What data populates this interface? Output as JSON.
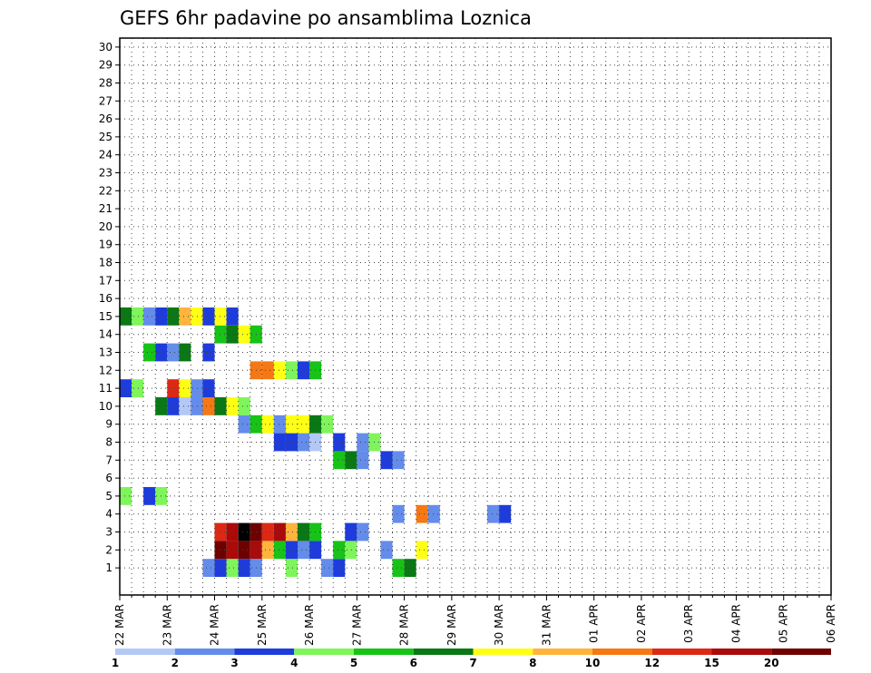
{
  "chart_data": {
    "type": "heatmap",
    "title": "GEFS 6hr padavine po ansamblima Loznica",
    "y": [
      "1",
      "2",
      "3",
      "4",
      "5",
      "6",
      "7",
      "8",
      "9",
      "10",
      "11",
      "12",
      "13",
      "14",
      "15",
      "16",
      "17",
      "18",
      "19",
      "20",
      "21",
      "22",
      "23",
      "24",
      "25",
      "26",
      "27",
      "28",
      "29",
      "30"
    ],
    "xticks": [
      "22 MAR",
      "23 MAR",
      "24 MAR",
      "25 MAR",
      "26 MAR",
      "27 MAR",
      "28 MAR",
      "29 MAR",
      "30 MAR",
      "31 MAR",
      "01 APR",
      "02 APR",
      "03 APR",
      "04 APR",
      "05 APR",
      "06 APR"
    ],
    "steps_per_day": 4,
    "colorbar": {
      "labels": [
        "1",
        "2",
        "3",
        "4",
        "5",
        "6",
        "7",
        "8",
        "10",
        "12",
        "15",
        "20"
      ],
      "colors": [
        "#b4c8f5",
        "#648ceb",
        "#1e3cdc",
        "#7ef55a",
        "#16c316",
        "#0a7814",
        "#ffff14",
        "#ffb43c",
        "#f57814",
        "#dc2814",
        "#aa0a0a",
        "#6e0000"
      ]
    },
    "grid": true,
    "cells": [
      [
        1,
        7,
        [
          [
            0,
            1
          ],
          [
            1,
            2
          ],
          [
            2,
            3
          ],
          [
            3,
            2
          ],
          [
            4,
            1
          ],
          [
            7,
            3
          ],
          [
            10,
            1
          ],
          [
            11,
            2
          ],
          [
            16,
            4
          ],
          [
            17,
            5
          ]
        ]
      ],
      [
        2,
        8,
        [
          [
            0,
            11
          ],
          [
            1,
            10
          ],
          [
            2,
            11
          ],
          [
            3,
            10
          ],
          [
            4,
            7
          ],
          [
            5,
            4
          ],
          [
            6,
            2
          ],
          [
            7,
            1
          ],
          [
            8,
            2
          ],
          [
            10,
            4
          ],
          [
            11,
            3
          ],
          [
            14,
            1
          ],
          [
            17,
            6
          ]
        ]
      ],
      [
        3,
        7,
        [
          [
            1,
            9
          ],
          [
            2,
            10
          ],
          [
            3,
            12
          ],
          [
            4,
            11
          ],
          [
            5,
            9
          ],
          [
            6,
            10
          ],
          [
            7,
            7
          ],
          [
            8,
            5
          ],
          [
            9,
            4
          ],
          [
            12,
            2
          ],
          [
            13,
            1
          ]
        ]
      ],
      [
        4,
        23,
        [
          [
            0,
            1
          ],
          [
            2,
            8
          ],
          [
            3,
            1
          ],
          [
            8,
            1
          ],
          [
            9,
            2
          ]
        ]
      ],
      [
        5,
        0,
        [
          [
            0,
            3
          ],
          [
            2,
            2
          ],
          [
            3,
            3
          ]
        ]
      ],
      [
        7,
        16,
        [
          [
            2,
            4
          ],
          [
            3,
            5
          ],
          [
            4,
            1
          ],
          [
            6,
            2
          ],
          [
            7,
            1
          ]
        ]
      ],
      [
        8,
        13,
        [
          [
            0,
            2
          ],
          [
            1,
            2
          ],
          [
            2,
            1
          ],
          [
            3,
            0
          ],
          [
            5,
            2
          ],
          [
            7,
            1
          ],
          [
            8,
            3
          ]
        ]
      ],
      [
        9,
        10,
        [
          [
            0,
            1
          ],
          [
            1,
            4
          ],
          [
            2,
            6
          ],
          [
            3,
            1
          ],
          [
            4,
            6
          ],
          [
            5,
            6
          ],
          [
            6,
            5
          ],
          [
            7,
            3
          ]
        ]
      ],
      [
        10,
        3,
        [
          [
            0,
            5
          ],
          [
            1,
            2
          ],
          [
            2,
            0
          ],
          [
            3,
            1
          ],
          [
            4,
            8
          ],
          [
            5,
            5
          ],
          [
            6,
            6
          ],
          [
            7,
            3
          ]
        ]
      ],
      [
        11,
        0,
        [
          [
            0,
            2
          ],
          [
            1,
            3
          ],
          [
            4,
            9
          ],
          [
            5,
            6
          ],
          [
            6,
            1
          ],
          [
            7,
            2
          ]
        ]
      ],
      [
        12,
        10,
        [
          [
            1,
            8
          ],
          [
            2,
            8
          ],
          [
            3,
            6
          ],
          [
            4,
            3
          ],
          [
            5,
            2
          ],
          [
            6,
            4
          ]
        ]
      ],
      [
        13,
        1,
        [
          [
            1,
            4
          ],
          [
            2,
            2
          ],
          [
            3,
            1
          ],
          [
            4,
            5
          ],
          [
            6,
            2
          ]
        ]
      ],
      [
        14,
        8,
        [
          [
            0,
            4
          ],
          [
            1,
            5
          ],
          [
            2,
            6
          ],
          [
            3,
            4
          ]
        ]
      ],
      [
        15,
        0,
        [
          [
            0,
            5
          ],
          [
            1,
            3
          ],
          [
            2,
            1
          ],
          [
            3,
            2
          ],
          [
            4,
            5
          ],
          [
            5,
            7
          ],
          [
            6,
            6
          ],
          [
            7,
            2
          ],
          [
            8,
            6
          ],
          [
            9,
            2
          ]
        ]
      ]
    ]
  }
}
